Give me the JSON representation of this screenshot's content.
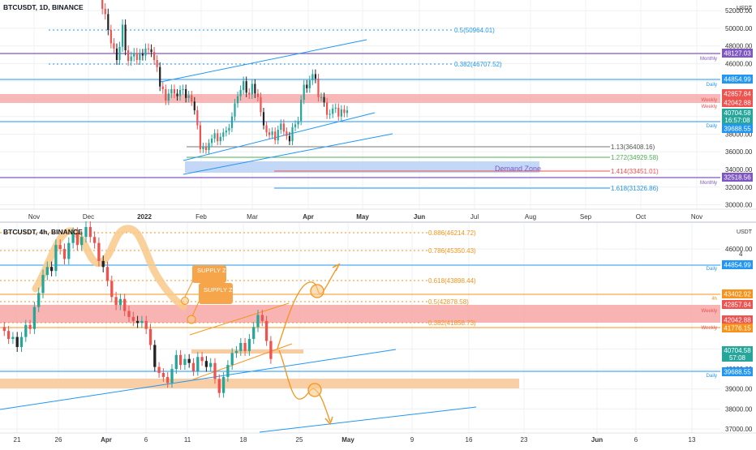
{
  "colors": {
    "up": "#26a69a",
    "down": "#ef5350",
    "candle_dark": "#222222",
    "fib": "#2196f3",
    "resistance_zone": "#f7a6a6",
    "demand_zone": "#bcd3f5",
    "orange": "#f7931a",
    "purple_line": "#7e57c2",
    "grid": "#eef0f3",
    "axis_text": "#333333"
  },
  "chart_data": [
    {
      "type": "candlestick",
      "title": "BTCUSDT, 1D, BINANCE",
      "currency": "USDT",
      "x_ticks": [
        "Nov",
        "Dec",
        "2022",
        "Feb",
        "Mar",
        "Apr",
        "May",
        "Jun",
        "Jul",
        "Aug",
        "Sep",
        "Oct",
        "Nov"
      ],
      "y_ticks": [
        30000,
        32000,
        34000,
        36000,
        38000,
        40000,
        42000,
        44000,
        46000,
        48000,
        50000,
        52000
      ],
      "ylim": [
        29500,
        53200
      ],
      "close_series": [
        57000,
        56500,
        55800,
        54000,
        52200,
        51600,
        49800,
        48300,
        47700,
        46400,
        47900,
        50400,
        47500,
        46300,
        46800,
        47200,
        46400,
        47100,
        46900,
        47700,
        47600,
        47300,
        46400,
        45600,
        43400,
        43100,
        41800,
        42600,
        43100,
        42600,
        42300,
        43000,
        43100,
        42100,
        42400,
        41700,
        40700,
        39000,
        36300,
        36600,
        36200,
        37000,
        37500,
        38100,
        37200,
        37700,
        38200,
        38400,
        38700,
        40000,
        41500,
        42300,
        43000,
        44000,
        42700,
        42500,
        43700,
        42600,
        42200,
        40500,
        39000,
        38200,
        37900,
        38300,
        37300,
        38500,
        39200,
        38300,
        37800,
        37200,
        38800,
        39100,
        39500,
        41900,
        43600,
        43200,
        44100,
        44800,
        44300,
        42200,
        42200,
        41600,
        40200,
        40300,
        40900,
        41000,
        40000,
        40800,
        40400,
        40700
      ],
      "price_labels": [
        {
          "text": "48127.03",
          "color": "#7e57c2",
          "note": "Monthly"
        },
        {
          "text": "44854.99",
          "color": "#2196f3",
          "note": "Daily"
        },
        {
          "text": "42857.84",
          "color": "#ef5350",
          "note": "Weekly"
        },
        {
          "text": "42042.88",
          "color": "#ef5350",
          "note": "Weekly"
        },
        {
          "text": "40704.58",
          "color": "#26a69a",
          "note": ""
        },
        {
          "text": "16:57:08",
          "color": "#26a69a",
          "note": ""
        },
        {
          "text": "39688.55",
          "color": "#2196f3",
          "note": "Daily"
        },
        {
          "text": "32518.56",
          "color": "#7e57c2",
          "note": "Monthly"
        }
      ],
      "fib_levels": [
        {
          "label": "0.5(50964.01)",
          "value": 50964.01,
          "color": "#2196f3"
        },
        {
          "label": "0.382(46707.52)",
          "value": 46707.52,
          "color": "#2196f3"
        },
        {
          "label": "1.13(36408.16)",
          "value": 36408.16,
          "color": "#555555"
        },
        {
          "label": "1.272(34929.58)",
          "value": 34929.58,
          "color": "#4caf50"
        },
        {
          "label": "1.414(33451.01)",
          "value": 33451.01,
          "color": "#ef5350"
        },
        {
          "label": "1.618(31326.86)",
          "value": 31326.86,
          "color": "#2196f3"
        }
      ],
      "annotations": [
        "Demand Zone"
      ]
    },
    {
      "type": "candlestick",
      "title": "BTCUSDT, 4h, BINANCE",
      "currency": "USDT",
      "x_ticks": [
        "21",
        "26",
        "Apr",
        "6",
        "11",
        "18",
        "25",
        "May",
        "9",
        "16",
        "23",
        "Jun",
        "6",
        "13"
      ],
      "y_ticks": [
        37000,
        38000,
        39000,
        40000,
        41000,
        46000
      ],
      "y_ticks_partial": [
        "4"
      ],
      "ylim": [
        36800,
        47300
      ],
      "close_series": [
        42100,
        41900,
        41500,
        41600,
        41100,
        41600,
        42200,
        42000,
        43100,
        43800,
        44700,
        45100,
        44900,
        46200,
        46000,
        45500,
        46300,
        46800,
        46200,
        46600,
        47100,
        46600,
        46300,
        45400,
        45100,
        44400,
        43600,
        43200,
        43500,
        42900,
        42600,
        42400,
        42300,
        42400,
        42000,
        41200,
        40100,
        39800,
        39600,
        39300,
        40000,
        40700,
        40200,
        40500,
        40300,
        39900,
        40600,
        40400,
        40100,
        40300,
        39500,
        38800,
        39600,
        40200,
        40800,
        40900,
        41300,
        40900,
        41500,
        42100,
        42700,
        42400,
        41400,
        40500
      ],
      "price_labels": [
        {
          "text": "44854.99",
          "color": "#2196f3",
          "note": "Daily"
        },
        {
          "text": "43402.92",
          "color": "#f7931a",
          "note": "4h"
        },
        {
          "text": "42857.84",
          "color": "#ef5350",
          "note": "Weekly"
        },
        {
          "text": "42042.88",
          "color": "#ef5350",
          "note": "Weekly"
        },
        {
          "text": "41776.15",
          "color": "#f7931a",
          "note": ""
        },
        {
          "text": "40704.58",
          "color": "#26a69a",
          "note": ""
        },
        {
          "text": "57:08",
          "color": "#26a69a",
          "note": ""
        },
        {
          "text": "39688.55",
          "color": "#2196f3",
          "note": "Daily"
        }
      ],
      "fib_levels": [
        {
          "label": "0.886(46214.72)",
          "value": 46214.72,
          "color": "#f7931a"
        },
        {
          "label": "0.786(45350.43)",
          "value": 45350.43,
          "color": "#f7931a"
        },
        {
          "label": "0.618(43898.44)",
          "value": 43898.44,
          "color": "#f7931a"
        },
        {
          "label": "0.5(42878.58)",
          "value": 42878.58,
          "color": "#f7931a"
        },
        {
          "label": "0.382(41858.73)",
          "value": 41858.73,
          "color": "#f7931a"
        }
      ],
      "annotations": [
        "SUPPLY ZONE",
        "SUPPLY ZONE"
      ]
    }
  ]
}
